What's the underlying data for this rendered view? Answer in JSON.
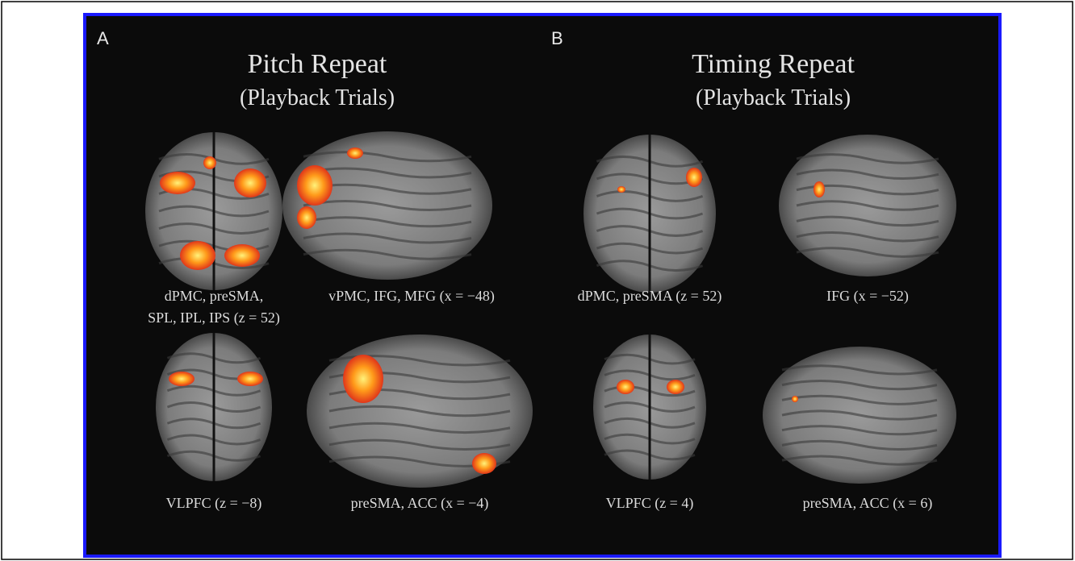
{
  "panels": [
    {
      "label": "A",
      "title": "Pitch Repeat",
      "subtitle": "(Playback Trials)",
      "captions": [
        [
          "dPMC, preSMA,",
          "SPL, IPL, IPS (z = 52)"
        ],
        [
          "vPMC, IFG, MFG (x = −48)"
        ],
        [
          "VLPFC (z = −8)"
        ],
        [
          "preSMA, ACC (x = −4)"
        ]
      ]
    },
    {
      "label": "B",
      "title": "Timing Repeat",
      "subtitle": "(Playback Trials)",
      "captions": [
        [
          "dPMC, preSMA (z = 52)"
        ],
        [
          "IFG (x = −52)"
        ],
        [
          "VLPFC (z = 4)"
        ],
        [
          "preSMA, ACC (x = 6)"
        ]
      ]
    }
  ]
}
